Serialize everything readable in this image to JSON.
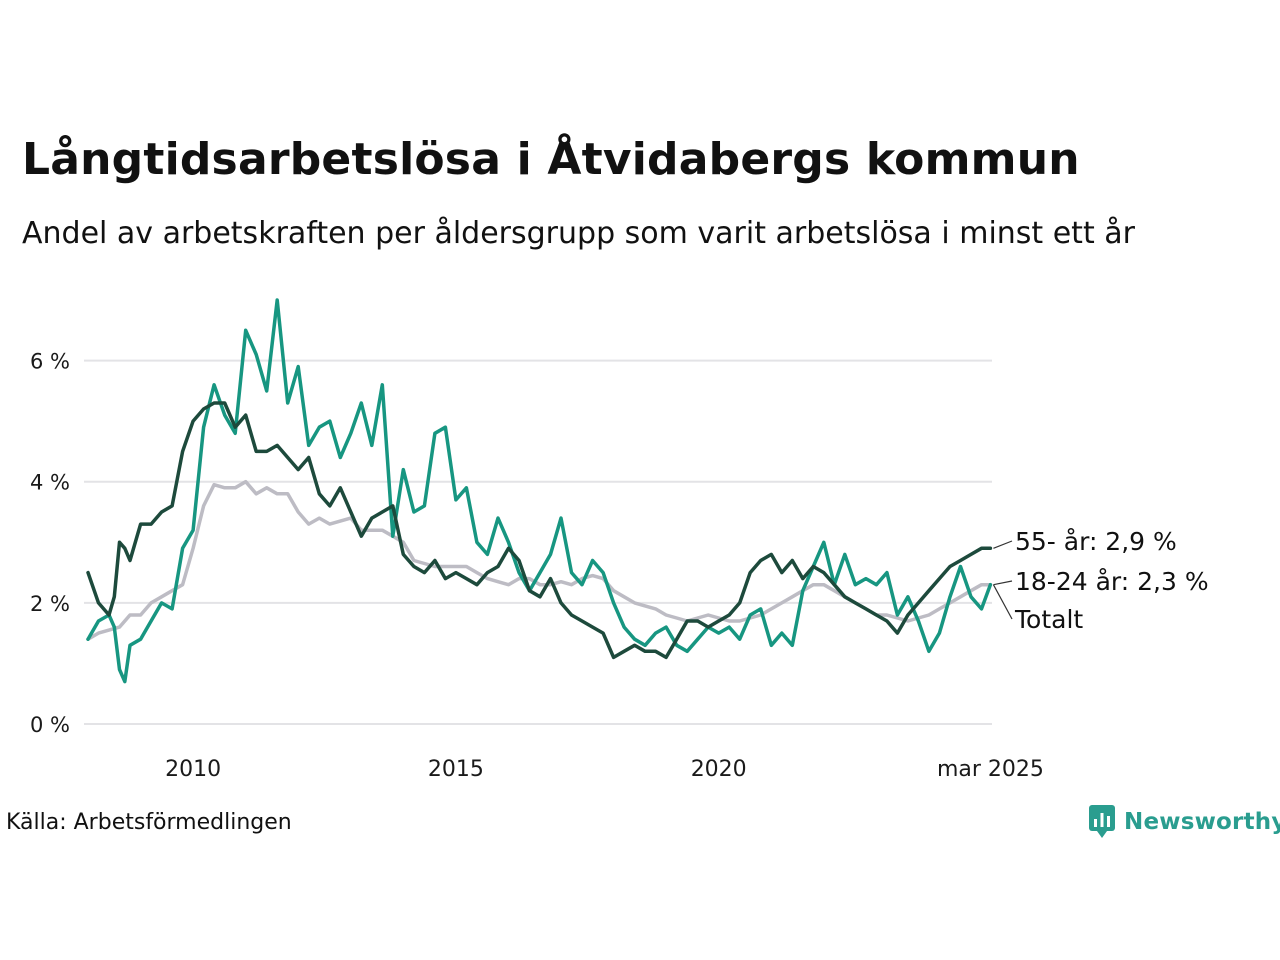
{
  "title": "Långtidsarbetslösa i Åtvidabergs kommun",
  "subtitle": "Andel av arbetskraften per åldersgrupp som varit arbetslösa i minst ett år",
  "source": "Källa: Arbetsförmedlingen",
  "logo": {
    "text": "Newsworthy",
    "icon": "newsworthy-chart-bubble-icon",
    "color": "#2a9d8f"
  },
  "chart_data": {
    "type": "line",
    "xlim": [
      2008.0,
      2025.2
    ],
    "ylim": [
      0,
      7
    ],
    "y_ticks": [
      {
        "value": 0,
        "label": "0 %"
      },
      {
        "value": 2,
        "label": "2 %"
      },
      {
        "value": 4,
        "label": "4 %"
      },
      {
        "value": 6,
        "label": "6 %"
      }
    ],
    "x_ticks": [
      {
        "value": 2010,
        "label": "2010"
      },
      {
        "value": 2015,
        "label": "2015"
      },
      {
        "value": 2020,
        "label": "2020"
      },
      {
        "value": 2025.17,
        "label": "mar 2025"
      }
    ],
    "grid": true,
    "series": [
      {
        "name": "Totalt",
        "label": "Totalt",
        "color": "#bdbcc4",
        "x": [
          2008.0,
          2008.2,
          2008.4,
          2008.6,
          2008.8,
          2009.0,
          2009.2,
          2009.4,
          2009.6,
          2009.8,
          2010.0,
          2010.2,
          2010.4,
          2010.6,
          2010.8,
          2011.0,
          2011.2,
          2011.4,
          2011.6,
          2011.8,
          2012.0,
          2012.2,
          2012.4,
          2012.6,
          2012.8,
          2013.0,
          2013.2,
          2013.4,
          2013.6,
          2013.8,
          2014.0,
          2014.2,
          2014.4,
          2014.6,
          2014.8,
          2015.0,
          2015.2,
          2015.4,
          2015.6,
          2015.8,
          2016.0,
          2016.2,
          2016.4,
          2016.6,
          2016.8,
          2017.0,
          2017.2,
          2017.4,
          2017.6,
          2017.8,
          2018.0,
          2018.2,
          2018.4,
          2018.6,
          2018.8,
          2019.0,
          2019.2,
          2019.4,
          2019.6,
          2019.8,
          2020.0,
          2020.2,
          2020.4,
          2020.6,
          2020.8,
          2021.0,
          2021.2,
          2021.4,
          2021.6,
          2021.8,
          2022.0,
          2022.2,
          2022.4,
          2022.6,
          2022.8,
          2023.0,
          2023.2,
          2023.4,
          2023.6,
          2023.8,
          2024.0,
          2024.2,
          2024.4,
          2024.6,
          2024.8,
          2025.0,
          2025.17
        ],
        "values": [
          1.4,
          1.5,
          1.55,
          1.6,
          1.8,
          1.8,
          2.0,
          2.1,
          2.2,
          2.3,
          2.9,
          3.6,
          3.95,
          3.9,
          3.9,
          4.0,
          3.8,
          3.9,
          3.8,
          3.8,
          3.5,
          3.3,
          3.4,
          3.3,
          3.35,
          3.4,
          3.2,
          3.2,
          3.2,
          3.1,
          3.0,
          2.7,
          2.65,
          2.6,
          2.6,
          2.6,
          2.6,
          2.5,
          2.4,
          2.35,
          2.3,
          2.4,
          2.4,
          2.3,
          2.3,
          2.35,
          2.3,
          2.4,
          2.45,
          2.4,
          2.2,
          2.1,
          2.0,
          1.95,
          1.9,
          1.8,
          1.75,
          1.7,
          1.75,
          1.8,
          1.75,
          1.7,
          1.7,
          1.75,
          1.8,
          1.9,
          2.0,
          2.1,
          2.2,
          2.3,
          2.3,
          2.2,
          2.1,
          2.0,
          1.9,
          1.8,
          1.8,
          1.75,
          1.7,
          1.75,
          1.8,
          1.9,
          2.0,
          2.1,
          2.2,
          2.3,
          2.3
        ]
      },
      {
        "name": "18-24 år",
        "label": "18-24 år: 2,3 %",
        "color": "#179681",
        "x": [
          2008.0,
          2008.2,
          2008.4,
          2008.5,
          2008.6,
          2008.7,
          2008.8,
          2009.0,
          2009.2,
          2009.4,
          2009.6,
          2009.8,
          2010.0,
          2010.2,
          2010.4,
          2010.6,
          2010.8,
          2011.0,
          2011.2,
          2011.4,
          2011.6,
          2011.8,
          2012.0,
          2012.2,
          2012.4,
          2012.6,
          2012.8,
          2013.0,
          2013.2,
          2013.4,
          2013.6,
          2013.8,
          2014.0,
          2014.2,
          2014.4,
          2014.6,
          2014.8,
          2015.0,
          2015.2,
          2015.4,
          2015.6,
          2015.8,
          2016.0,
          2016.2,
          2016.4,
          2016.6,
          2016.8,
          2017.0,
          2017.2,
          2017.4,
          2017.6,
          2017.8,
          2018.0,
          2018.2,
          2018.4,
          2018.6,
          2018.8,
          2019.0,
          2019.2,
          2019.4,
          2019.6,
          2019.8,
          2020.0,
          2020.2,
          2020.4,
          2020.6,
          2020.8,
          2021.0,
          2021.2,
          2021.4,
          2021.6,
          2021.8,
          2022.0,
          2022.2,
          2022.4,
          2022.6,
          2022.8,
          2023.0,
          2023.2,
          2023.4,
          2023.6,
          2023.8,
          2024.0,
          2024.2,
          2024.4,
          2024.6,
          2024.8,
          2025.0,
          2025.17
        ],
        "values": [
          1.4,
          1.7,
          1.8,
          1.6,
          0.9,
          0.7,
          1.3,
          1.4,
          1.7,
          2.0,
          1.9,
          2.9,
          3.2,
          4.9,
          5.6,
          5.1,
          4.8,
          6.5,
          6.1,
          5.5,
          7.0,
          5.3,
          5.9,
          4.6,
          4.9,
          5.0,
          4.4,
          4.8,
          5.3,
          4.6,
          5.6,
          3.1,
          4.2,
          3.5,
          3.6,
          4.8,
          4.9,
          3.7,
          3.9,
          3.0,
          2.8,
          3.4,
          3.0,
          2.5,
          2.2,
          2.5,
          2.8,
          3.4,
          2.5,
          2.3,
          2.7,
          2.5,
          2.0,
          1.6,
          1.4,
          1.3,
          1.5,
          1.6,
          1.3,
          1.2,
          1.4,
          1.6,
          1.5,
          1.6,
          1.4,
          1.8,
          1.9,
          1.3,
          1.5,
          1.3,
          2.2,
          2.6,
          3.0,
          2.3,
          2.8,
          2.3,
          2.4,
          2.3,
          2.5,
          1.8,
          2.1,
          1.7,
          1.2,
          1.5,
          2.1,
          2.6,
          2.1,
          1.9,
          2.3
        ]
      },
      {
        "name": "55- år",
        "label": "55- år: 2,9 %",
        "color": "#1d4a3c",
        "x": [
          2008.0,
          2008.2,
          2008.4,
          2008.5,
          2008.6,
          2008.7,
          2008.8,
          2009.0,
          2009.2,
          2009.4,
          2009.6,
          2009.8,
          2010.0,
          2010.2,
          2010.4,
          2010.6,
          2010.8,
          2011.0,
          2011.2,
          2011.4,
          2011.6,
          2011.8,
          2012.0,
          2012.2,
          2012.4,
          2012.6,
          2012.8,
          2013.0,
          2013.2,
          2013.4,
          2013.6,
          2013.8,
          2014.0,
          2014.2,
          2014.4,
          2014.6,
          2014.8,
          2015.0,
          2015.2,
          2015.4,
          2015.6,
          2015.8,
          2016.0,
          2016.2,
          2016.4,
          2016.6,
          2016.8,
          2017.0,
          2017.2,
          2017.4,
          2017.6,
          2017.8,
          2018.0,
          2018.2,
          2018.4,
          2018.6,
          2018.8,
          2019.0,
          2019.2,
          2019.4,
          2019.6,
          2019.8,
          2020.0,
          2020.2,
          2020.4,
          2020.6,
          2020.8,
          2021.0,
          2021.2,
          2021.4,
          2021.6,
          2021.8,
          2022.0,
          2022.2,
          2022.4,
          2022.6,
          2022.8,
          2023.0,
          2023.2,
          2023.4,
          2023.6,
          2023.8,
          2024.0,
          2024.2,
          2024.4,
          2024.6,
          2024.8,
          2025.0,
          2025.17
        ],
        "values": [
          2.5,
          2.0,
          1.8,
          2.1,
          3.0,
          2.9,
          2.7,
          3.3,
          3.3,
          3.5,
          3.6,
          4.5,
          5.0,
          5.2,
          5.3,
          5.3,
          4.9,
          5.1,
          4.5,
          4.5,
          4.6,
          4.4,
          4.2,
          4.4,
          3.8,
          3.6,
          3.9,
          3.5,
          3.1,
          3.4,
          3.5,
          3.6,
          2.8,
          2.6,
          2.5,
          2.7,
          2.4,
          2.5,
          2.4,
          2.3,
          2.5,
          2.6,
          2.9,
          2.7,
          2.2,
          2.1,
          2.4,
          2.0,
          1.8,
          1.7,
          1.6,
          1.5,
          1.1,
          1.2,
          1.3,
          1.2,
          1.2,
          1.1,
          1.4,
          1.7,
          1.7,
          1.6,
          1.7,
          1.8,
          2.0,
          2.5,
          2.7,
          2.8,
          2.5,
          2.7,
          2.4,
          2.6,
          2.5,
          2.3,
          2.1,
          2.0,
          1.9,
          1.8,
          1.7,
          1.5,
          1.8,
          2.0,
          2.2,
          2.4,
          2.6,
          2.7,
          2.8,
          2.9,
          2.9
        ]
      }
    ]
  }
}
